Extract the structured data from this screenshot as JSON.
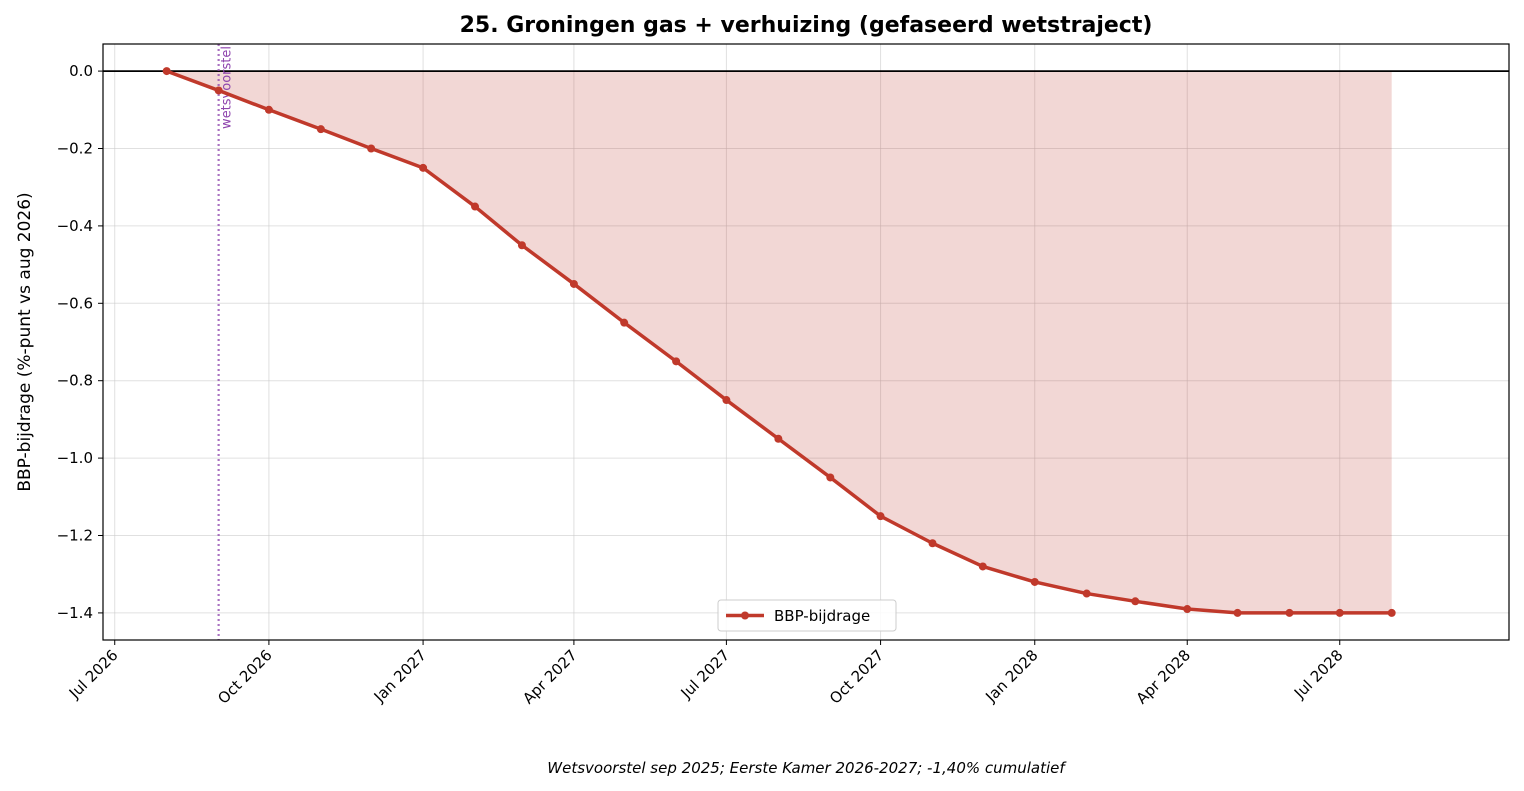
{
  "chart_data": {
    "type": "line",
    "title": "25. Groningen gas + verhuizing (gefaseerd wetstraject)",
    "ylabel": "BBP-bijdrage (%-punt vs aug 2026)",
    "xlabel": "",
    "caption": "Wetsvoorstel sep 2025; Eerste Kamer 2026-2027; -1,40% cumulatief",
    "ylim": [
      -1.47,
      0.07
    ],
    "xlim": [
      "2026-06-24",
      "2028-10-10"
    ],
    "yticks": [
      0.0,
      -0.2,
      -0.4,
      -0.6,
      -0.8,
      -1.0,
      -1.2,
      -1.4
    ],
    "ytick_labels": [
      "0.0",
      "−0.2",
      "−0.4",
      "−0.6",
      "−0.8",
      "−1.0",
      "−1.2",
      "−1.4"
    ],
    "xticks": [
      "2026-07-01",
      "2026-10-01",
      "2027-01-01",
      "2027-04-01",
      "2027-07-01",
      "2027-10-01",
      "2028-01-01",
      "2028-04-01",
      "2028-07-01"
    ],
    "xtick_labels": [
      "Jul 2026",
      "Oct 2026",
      "Jan 2027",
      "Apr 2027",
      "Jul 2027",
      "Oct 2027",
      "Jan 2028",
      "Apr 2028",
      "Jul 2028"
    ],
    "grid": true,
    "legend_position": "bottom-center",
    "series": [
      {
        "name": "BBP-bijdrage",
        "color": "#c0392b",
        "fill": "area-to-zero",
        "x": [
          "2026-08-01",
          "2026-09-01",
          "2026-10-01",
          "2026-11-01",
          "2026-12-01",
          "2027-01-01",
          "2027-02-01",
          "2027-03-01",
          "2027-04-01",
          "2027-05-01",
          "2027-06-01",
          "2027-07-01",
          "2027-08-01",
          "2027-09-01",
          "2027-10-01",
          "2027-11-01",
          "2027-12-01",
          "2028-01-01",
          "2028-02-01",
          "2028-03-01",
          "2028-04-01",
          "2028-05-01",
          "2028-06-01",
          "2028-07-01",
          "2028-08-01"
        ],
        "y": [
          0.0,
          -0.05,
          -0.1,
          -0.15,
          -0.2,
          -0.25,
          -0.35,
          -0.45,
          -0.55,
          -0.65,
          -0.75,
          -0.85,
          -0.95,
          -1.05,
          -1.15,
          -1.22,
          -1.28,
          -1.32,
          -1.35,
          -1.37,
          -1.39,
          -1.4,
          -1.4,
          -1.4,
          -1.4
        ]
      }
    ],
    "annotations": [
      {
        "type": "vline",
        "x": "2026-09-01",
        "label": "wetsvoorstel",
        "color": "#8e44ad",
        "style": "dotted"
      },
      {
        "type": "hline",
        "y": 0.0,
        "color": "#000000"
      }
    ]
  }
}
